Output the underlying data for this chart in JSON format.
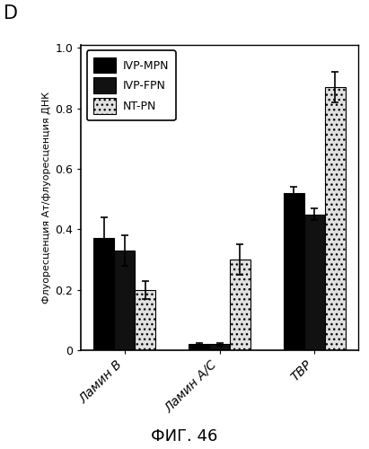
{
  "groups": [
    "Ламин B",
    "Ламин A/C",
    "ТВР"
  ],
  "series": [
    "IVP-MPN",
    "IVP-FPN",
    "NT-PN"
  ],
  "values": [
    [
      0.37,
      0.02,
      0.52
    ],
    [
      0.33,
      0.02,
      0.45
    ],
    [
      0.2,
      0.3,
      0.87
    ]
  ],
  "errors": [
    [
      0.07,
      0.005,
      0.02
    ],
    [
      0.05,
      0.005,
      0.02
    ],
    [
      0.03,
      0.05,
      0.05
    ]
  ],
  "colors": [
    "#000000",
    "#111111",
    "#e0e0e0"
  ],
  "hatches": [
    "",
    "",
    "..."
  ],
  "ylabel": "Флуоресценция Ат/флуоресценция ДНК",
  "ylim": [
    0,
    1.0
  ],
  "yticks": [
    0,
    0.2,
    0.4,
    0.6,
    0.8,
    1.0
  ],
  "title_letter": "D",
  "caption": "ФИГ. 46",
  "legend_loc": "upper left"
}
